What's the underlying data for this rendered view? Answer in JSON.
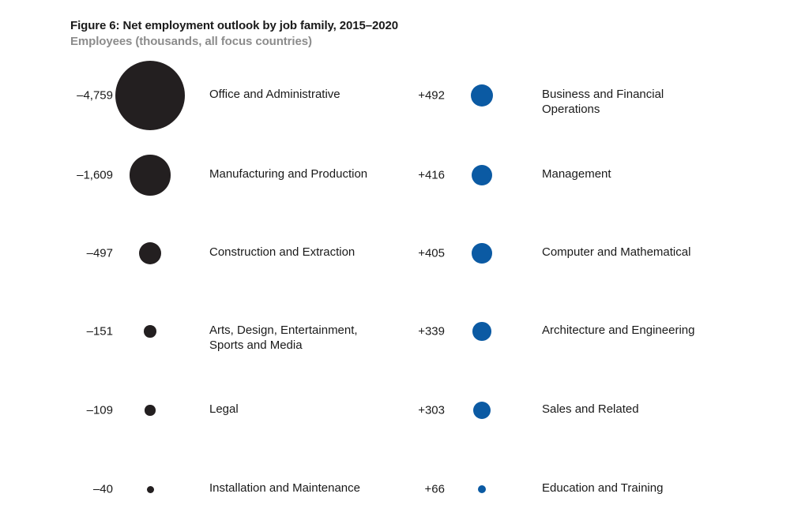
{
  "chart_data": {
    "type": "bubble",
    "title": "Figure 6: Net employment outlook by job family, 2015–2020",
    "subtitle": "Employees (thousands, all focus countries)",
    "colors": {
      "negative": "#231f20",
      "positive": "#0b5aa3"
    },
    "negative": [
      {
        "label": "Office and Administrative",
        "value_label": "–4,759",
        "value": -4759
      },
      {
        "label": "Manufacturing and Production",
        "value_label": "–1,609",
        "value": -1609
      },
      {
        "label": "Construction and Extraction",
        "value_label": "–497",
        "value": -497
      },
      {
        "label": "Arts, Design, Entertainment, Sports and Media",
        "value_label": "–151",
        "value": -151
      },
      {
        "label": "Legal",
        "value_label": "–109",
        "value": -109
      },
      {
        "label": "Installation and Maintenance",
        "value_label": "–40",
        "value": -40
      }
    ],
    "positive": [
      {
        "label": "Business and Financial Operations",
        "value_label": "+492",
        "value": 492
      },
      {
        "label": "Management",
        "value_label": "+416",
        "value": 416
      },
      {
        "label": "Computer and Mathematical",
        "value_label": "+405",
        "value": 405
      },
      {
        "label": "Architecture and Engineering",
        "value_label": "+339",
        "value": 339
      },
      {
        "label": "Sales and Related",
        "value_label": "+303",
        "value": 303
      },
      {
        "label": "Education and Training",
        "value_label": "+66",
        "value": 66
      }
    ]
  }
}
